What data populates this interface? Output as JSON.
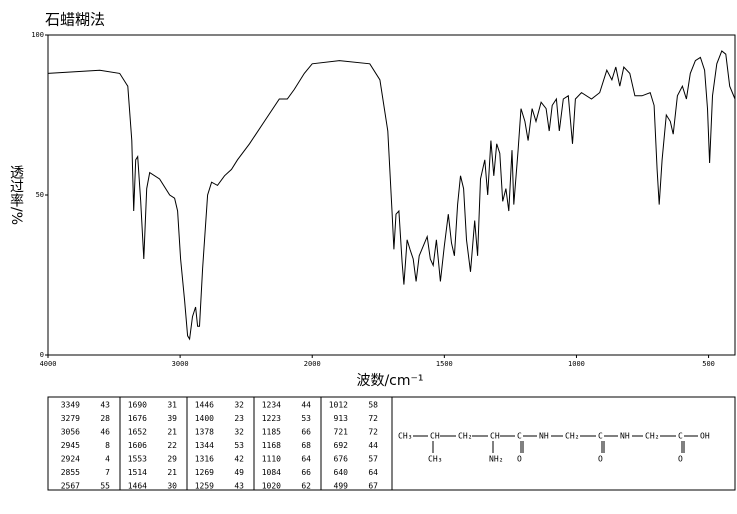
{
  "chart_data": {
    "type": "line",
    "title": "石蜡糊法",
    "x_label": "波数/cm⁻¹",
    "y_label": "透过率/%",
    "xlim": [
      4000,
      400
    ],
    "x_scale_break": 2000,
    "xticks": [
      4000,
      3000,
      2000,
      1500,
      1000,
      500
    ],
    "ylim": [
      0,
      100
    ],
    "yticks": [
      0,
      50,
      100
    ],
    "color": "#000000",
    "x": [
      4000,
      3608,
      3457,
      3396,
      3366,
      3351,
      3336,
      3321,
      3298,
      3275,
      3253,
      3230,
      3155,
      3079,
      3042,
      3019,
      2996,
      2966,
      2943,
      2928,
      2906,
      2883,
      2868,
      2853,
      2830,
      2792,
      2762,
      2717,
      2664,
      2611,
      2566,
      2475,
      2362,
      2249,
      2189,
      2136,
      2060,
      2000,
      1897,
      1782,
      1744,
      1714,
      1698,
      1691,
      1683,
      1672,
      1660,
      1653,
      1641,
      1630,
      1618,
      1607,
      1595,
      1580,
      1565,
      1553,
      1542,
      1530,
      1515,
      1500,
      1485,
      1473,
      1462,
      1450,
      1439,
      1427,
      1416,
      1401,
      1385,
      1374,
      1363,
      1347,
      1336,
      1324,
      1313,
      1302,
      1290,
      1279,
      1267,
      1256,
      1244,
      1237,
      1221,
      1210,
      1195,
      1183,
      1168,
      1153,
      1134,
      1115,
      1103,
      1092,
      1076,
      1065,
      1050,
      1031,
      1015,
      1004,
      981,
      943,
      912,
      885,
      866,
      851,
      836,
      821,
      798,
      779,
      752,
      721,
      706,
      695,
      687,
      676,
      660,
      645,
      634,
      618,
      599,
      584,
      569,
      550,
      531,
      515,
      504,
      496,
      485,
      469,
      450,
      435,
      420,
      400
    ],
    "values": [
      88,
      89,
      88,
      84,
      67,
      45,
      61,
      62,
      48,
      30,
      52,
      57,
      55,
      50,
      49,
      45,
      30,
      17,
      6,
      5,
      12,
      15,
      9,
      9,
      27,
      50,
      54,
      53,
      56,
      58,
      61,
      66,
      73,
      80,
      80,
      83,
      88,
      91,
      92,
      91,
      86,
      70,
      45,
      33,
      44,
      45,
      29,
      22,
      36,
      33,
      30,
      23,
      31,
      34,
      37,
      30,
      28,
      36,
      23,
      34,
      44,
      35,
      31,
      47,
      56,
      52,
      36,
      26,
      42,
      31,
      55,
      61,
      50,
      67,
      56,
      66,
      63,
      48,
      52,
      45,
      64,
      47,
      64,
      77,
      73,
      67,
      77,
      73,
      79,
      77,
      70,
      78,
      80,
      70,
      80,
      81,
      66,
      80,
      82,
      80,
      82,
      89,
      86,
      90,
      84,
      90,
      88,
      81,
      81,
      82,
      78,
      58,
      47,
      61,
      75,
      73,
      69,
      81,
      84,
      80,
      88,
      92,
      93,
      89,
      77,
      60,
      81,
      91,
      95,
      94,
      84,
      80
    ],
    "peak_table": {
      "wavenumbers": [
        "3349",
        "3279",
        "3056",
        "2945",
        "2924",
        "2855",
        "2567",
        "1690",
        "1676",
        "1652",
        "1606",
        "1553",
        "1514",
        "1464",
        "1446",
        "1400",
        "1378",
        "1344",
        "1316",
        "1269",
        "1259",
        "1234",
        "1223",
        "1185",
        "1168",
        "1110",
        "1084",
        "1020",
        "1012",
        "913",
        "721",
        "692",
        "676",
        "640",
        "499"
      ],
      "transmittances": [
        "43",
        "28",
        "46",
        "8",
        "4",
        "7",
        "55",
        "31",
        "39",
        "21",
        "22",
        "29",
        "21",
        "30",
        "32",
        "23",
        "32",
        "53",
        "42",
        "49",
        "43",
        "44",
        "53",
        "66",
        "68",
        "64",
        "66",
        "62",
        "58",
        "72",
        "72",
        "44",
        "57",
        "64",
        "67"
      ]
    },
    "structure": {
      "main": [
        "CH₃",
        "CH",
        "CH₂",
        "CH",
        "C",
        "NH",
        "CH₂",
        "C",
        "NH",
        "CH₂",
        "C",
        "OH"
      ],
      "below": [
        "CH₃",
        "NH₂",
        "O",
        "O",
        "O"
      ]
    }
  }
}
